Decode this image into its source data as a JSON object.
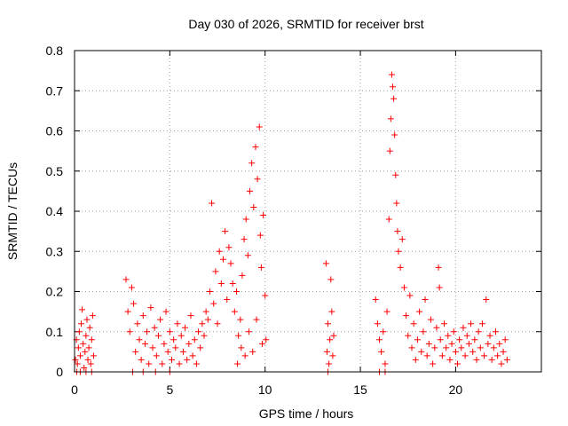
{
  "chart_data": {
    "type": "scatter",
    "title": "Day 030 of 2026, SRMTID for receiver brst",
    "xlabel": "GPS time / hours",
    "ylabel": "SRMTID / TECUs",
    "xlim": [
      0,
      24.5
    ],
    "ylim": [
      0,
      0.8
    ],
    "xticks": [
      0,
      5,
      10,
      15,
      20
    ],
    "yticks": [
      0,
      0.1,
      0.2,
      0.3,
      0.4,
      0.5,
      0.6,
      0.7,
      0.8
    ],
    "xtick_labels": [
      "0",
      "5",
      "10",
      "15",
      "20"
    ],
    "ytick_labels": [
      "0",
      "0.1",
      "0.2",
      "0.3",
      "0.4",
      "0.5",
      "0.6",
      "0.7",
      "0.8"
    ],
    "grid": true,
    "marker": "+",
    "color": "#ff0000",
    "series": [
      {
        "name": "SRMTID",
        "points": [
          [
            0.05,
            0.03
          ],
          [
            0.1,
            0.08
          ],
          [
            0.15,
            0.02
          ],
          [
            0.2,
            0.06
          ],
          [
            0.25,
            0.1
          ],
          [
            0.3,
            0.04
          ],
          [
            0.35,
            0.12
          ],
          [
            0.4,
            0.155
          ],
          [
            0.45,
            0.07
          ],
          [
            0.5,
            0.01
          ],
          [
            0.55,
            0.05
          ],
          [
            0.6,
            0.09
          ],
          [
            0.65,
            0.13
          ],
          [
            0.7,
            0.03
          ],
          [
            0.75,
            0.06
          ],
          [
            0.8,
            0.11
          ],
          [
            0.85,
            0.02
          ],
          [
            0.9,
            0.08
          ],
          [
            0.95,
            0.14
          ],
          [
            1.0,
            0.04
          ],
          [
            0.12,
            0.0
          ],
          [
            0.3,
            0.0
          ],
          [
            0.6,
            0.0
          ],
          [
            0.9,
            0.0
          ],
          [
            2.7,
            0.23
          ],
          [
            2.8,
            0.15
          ],
          [
            2.9,
            0.1
          ],
          [
            3.0,
            0.21
          ],
          [
            3.1,
            0.17
          ],
          [
            3.2,
            0.05
          ],
          [
            3.3,
            0.12
          ],
          [
            3.4,
            0.08
          ],
          [
            3.5,
            0.03
          ],
          [
            3.6,
            0.14
          ],
          [
            3.7,
            0.07
          ],
          [
            3.8,
            0.1
          ],
          [
            3.9,
            0.02
          ],
          [
            4.0,
            0.16
          ],
          [
            4.1,
            0.06
          ],
          [
            4.2,
            0.11
          ],
          [
            4.3,
            0.04
          ],
          [
            4.4,
            0.09
          ],
          [
            4.5,
            0.13
          ],
          [
            4.6,
            0.02
          ],
          [
            4.7,
            0.07
          ],
          [
            4.8,
            0.15
          ],
          [
            4.9,
            0.05
          ],
          [
            5.0,
            0.1
          ],
          [
            5.1,
            0.03
          ],
          [
            5.2,
            0.08
          ],
          [
            5.3,
            0.06
          ],
          [
            5.4,
            0.12
          ],
          [
            5.5,
            0.02
          ],
          [
            5.6,
            0.09
          ],
          [
            5.7,
            0.05
          ],
          [
            5.8,
            0.11
          ],
          [
            5.9,
            0.03
          ],
          [
            6.0,
            0.07
          ],
          [
            6.1,
            0.14
          ],
          [
            6.2,
            0.04
          ],
          [
            6.3,
            0.08
          ],
          [
            6.4,
            0.02
          ],
          [
            6.5,
            0.1
          ],
          [
            6.6,
            0.06
          ],
          [
            6.7,
            0.12
          ],
          [
            6.8,
            0.09
          ],
          [
            6.9,
            0.15
          ],
          [
            3.05,
            0.0
          ],
          [
            3.6,
            0.0
          ],
          [
            4.25,
            0.0
          ],
          [
            5.0,
            0.0
          ],
          [
            7.0,
            0.13
          ],
          [
            7.1,
            0.2
          ],
          [
            7.2,
            0.42
          ],
          [
            7.3,
            0.17
          ],
          [
            7.4,
            0.25
          ],
          [
            7.5,
            0.12
          ],
          [
            7.6,
            0.3
          ],
          [
            7.7,
            0.22
          ],
          [
            7.8,
            0.28
          ],
          [
            7.9,
            0.35
          ],
          [
            8.0,
            0.18
          ],
          [
            8.1,
            0.31
          ],
          [
            8.2,
            0.27
          ],
          [
            8.3,
            0.22
          ],
          [
            8.4,
            0.15
          ],
          [
            8.5,
            0.2
          ],
          [
            8.6,
            0.09
          ],
          [
            8.7,
            0.13
          ],
          [
            8.8,
            0.24
          ],
          [
            8.9,
            0.33
          ],
          [
            9.0,
            0.38
          ],
          [
            9.1,
            0.29
          ],
          [
            9.2,
            0.45
          ],
          [
            9.3,
            0.52
          ],
          [
            9.4,
            0.41
          ],
          [
            9.5,
            0.56
          ],
          [
            9.6,
            0.48
          ],
          [
            9.7,
            0.61
          ],
          [
            9.75,
            0.34
          ],
          [
            9.8,
            0.26
          ],
          [
            9.9,
            0.39
          ],
          [
            10.0,
            0.19
          ],
          [
            10.05,
            0.08
          ],
          [
            8.55,
            0.02
          ],
          [
            8.75,
            0.06
          ],
          [
            8.95,
            0.04
          ],
          [
            9.15,
            0.1
          ],
          [
            9.35,
            0.05
          ],
          [
            9.55,
            0.13
          ],
          [
            9.85,
            0.07
          ],
          [
            13.2,
            0.27
          ],
          [
            13.25,
            0.05
          ],
          [
            13.3,
            0.12
          ],
          [
            13.35,
            0.02
          ],
          [
            13.4,
            0.08
          ],
          [
            13.45,
            0.23
          ],
          [
            13.5,
            0.15
          ],
          [
            13.55,
            0.04
          ],
          [
            13.6,
            0.09
          ],
          [
            13.3,
            0.0
          ],
          [
            15.8,
            0.18
          ],
          [
            15.9,
            0.12
          ],
          [
            16.0,
            0.08
          ],
          [
            16.1,
            0.05
          ],
          [
            16.2,
            0.1
          ],
          [
            16.3,
            0.02
          ],
          [
            16.4,
            0.15
          ],
          [
            16.5,
            0.38
          ],
          [
            16.55,
            0.55
          ],
          [
            16.6,
            0.63
          ],
          [
            16.65,
            0.74
          ],
          [
            16.7,
            0.71
          ],
          [
            16.75,
            0.68
          ],
          [
            16.8,
            0.59
          ],
          [
            16.85,
            0.49
          ],
          [
            16.9,
            0.42
          ],
          [
            16.95,
            0.35
          ],
          [
            17.0,
            0.3
          ],
          [
            17.1,
            0.26
          ],
          [
            17.2,
            0.33
          ],
          [
            17.3,
            0.21
          ],
          [
            17.4,
            0.14
          ],
          [
            17.5,
            0.09
          ],
          [
            17.6,
            0.19
          ],
          [
            17.7,
            0.06
          ],
          [
            17.8,
            0.12
          ],
          [
            17.9,
            0.03
          ],
          [
            18.0,
            0.08
          ],
          [
            18.1,
            0.15
          ],
          [
            18.2,
            0.05
          ],
          [
            18.3,
            0.1
          ],
          [
            18.4,
            0.18
          ],
          [
            18.5,
            0.04
          ],
          [
            18.6,
            0.07
          ],
          [
            18.7,
            0.13
          ],
          [
            18.8,
            0.02
          ],
          [
            18.9,
            0.06
          ],
          [
            19.0,
            0.11
          ],
          [
            19.1,
            0.26
          ],
          [
            19.15,
            0.21
          ],
          [
            19.2,
            0.08
          ],
          [
            19.3,
            0.04
          ],
          [
            19.4,
            0.12
          ],
          [
            19.5,
            0.06
          ],
          [
            19.6,
            0.09
          ],
          [
            19.7,
            0.03
          ],
          [
            19.8,
            0.07
          ],
          [
            19.9,
            0.1
          ],
          [
            20.0,
            0.05
          ],
          [
            20.1,
            0.02
          ],
          [
            20.2,
            0.08
          ],
          [
            20.3,
            0.06
          ],
          [
            20.4,
            0.11
          ],
          [
            20.5,
            0.04
          ],
          [
            20.6,
            0.09
          ],
          [
            20.7,
            0.07
          ],
          [
            20.8,
            0.12
          ],
          [
            20.9,
            0.05
          ],
          [
            21.0,
            0.08
          ],
          [
            21.1,
            0.03
          ],
          [
            21.2,
            0.1
          ],
          [
            21.3,
            0.06
          ],
          [
            21.4,
            0.12
          ],
          [
            21.5,
            0.04
          ],
          [
            21.6,
            0.18
          ],
          [
            21.7,
            0.07
          ],
          [
            21.8,
            0.09
          ],
          [
            21.9,
            0.03
          ],
          [
            22.0,
            0.06
          ],
          [
            22.1,
            0.1
          ],
          [
            22.2,
            0.04
          ],
          [
            22.3,
            0.07
          ],
          [
            22.4,
            0.02
          ],
          [
            22.5,
            0.05
          ],
          [
            22.6,
            0.08
          ],
          [
            22.7,
            0.03
          ],
          [
            16.0,
            0.0
          ],
          [
            16.3,
            0.0
          ]
        ]
      }
    ]
  }
}
